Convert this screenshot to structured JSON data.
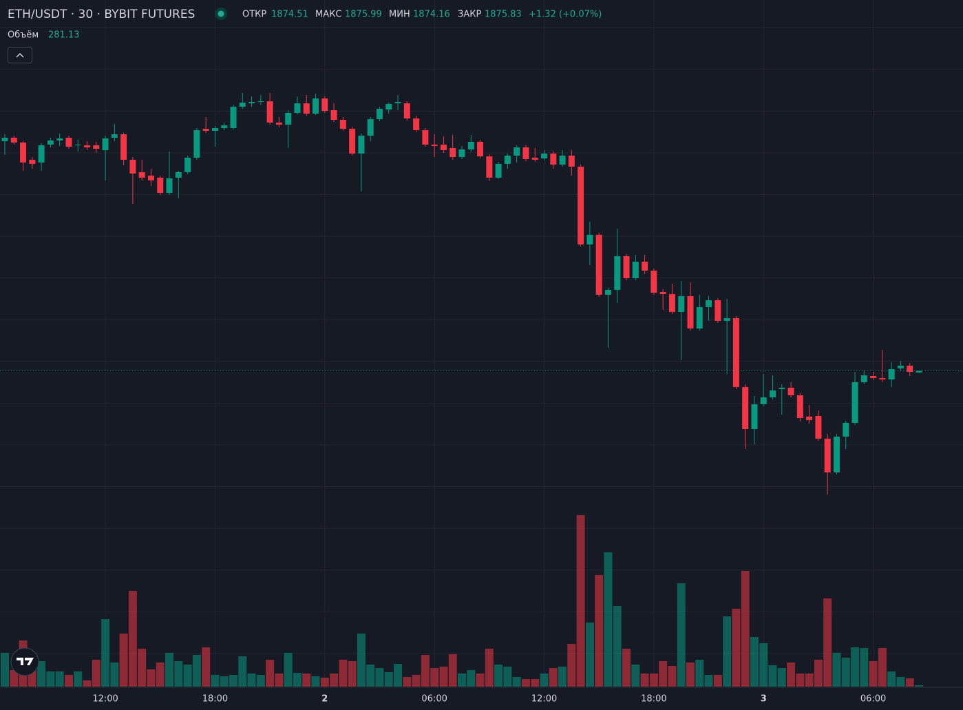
{
  "chart_data": {
    "type": "candlestick",
    "title": "ETH/USDT · 30 · BYBIT FUTURES",
    "ohlc_labels": [
      "ОТКР",
      "МАКС",
      "МИН",
      "ЗАКР"
    ],
    "change": "+1.32 (+0.07%)",
    "volume_label": "Объём",
    "up_color": "#089981",
    "down_color": "#f23645",
    "categories": [
      null,
      null,
      null,
      null,
      null,
      null,
      null,
      null,
      null,
      null,
      null,
      "12:00",
      null,
      null,
      null,
      null,
      null,
      null,
      null,
      null,
      null,
      null,
      null,
      "18:00",
      null,
      null,
      null,
      null,
      null,
      null,
      null,
      null,
      null,
      null,
      null,
      "2",
      null,
      null,
      null,
      null,
      null,
      null,
      null,
      null,
      null,
      null,
      null,
      "06:00",
      null,
      null,
      null,
      null,
      null,
      null,
      null,
      null,
      null,
      null,
      null,
      "12:00",
      null,
      null,
      null,
      null,
      null,
      null,
      null,
      null,
      null,
      null,
      null,
      "18:00",
      null,
      null,
      null,
      null,
      null,
      null,
      null,
      null,
      null,
      null,
      null,
      "3",
      null,
      null,
      null,
      null,
      null,
      null,
      null,
      null,
      null,
      null,
      null,
      "06:00",
      null,
      null,
      null,
      null,
      null
    ],
    "open": [
      2042.5,
      2045,
      2041.5,
      2029,
      2027,
      2040,
      2043,
      2045,
      2039.5,
      2039.5,
      2039.5,
      2036,
      2045,
      2047.5,
      2029,
      2020,
      2017.5,
      2016,
      2005,
      2016,
      2020,
      2030.5,
      2051.5,
      2050,
      2052,
      2052,
      2067.5,
      2070,
      2071,
      2071.5,
      2056,
      2054.5,
      2063,
      2070,
      2062.5,
      2073.5,
      2065,
      2058,
      2051.5,
      2033.5,
      2046.5,
      2058.5,
      2065.5,
      2070,
      2070,
      2059,
      2050.5,
      2040,
      2040,
      2037.5,
      2031,
      2036.5,
      2042,
      2031.5,
      2016,
      2026,
      2032,
      2038,
      2030.5,
      2030,
      2033.5,
      2025.5,
      2032,
      2024,
      1967.5,
      1974.5,
      1931,
      1934.5,
      1959,
      1943,
      1955,
      1948.5,
      1933,
      1931.5,
      1918.5,
      1930,
      1906.5,
      1922,
      1927,
      1912,
      1914,
      1864,
      1833.5,
      1851.5,
      1856.5,
      1862.5,
      1863.5,
      1858,
      1842.5,
      1843,
      1826.5,
      1802,
      1828,
      1838,
      1867.5,
      1872,
      1870.5,
      1869.5,
      1877.5,
      1879.5,
      1874.51
    ],
    "high": [
      2047.5,
      2046.5,
      2042.5,
      2031,
      2041,
      2045,
      2048,
      2046.5,
      2043.5,
      2042.5,
      2042,
      2046.5,
      2055,
      2048.5,
      2031,
      2029,
      2022.5,
      2017.5,
      2035,
      2021,
      2032,
      2052,
      2060,
      2053.5,
      2056,
      2069,
      2077.5,
      2075,
      2076,
      2077.5,
      2060,
      2065,
      2075,
      2076,
      2077,
      2075,
      2070,
      2060,
      2053,
      2048,
      2060,
      2067.5,
      2070.5,
      2076,
      2071.5,
      2061,
      2052,
      2047.5,
      2046,
      2047,
      2039,
      2047,
      2043.5,
      2033,
      2027.5,
      2033.5,
      2039.5,
      2039.5,
      2037.5,
      2036,
      2035,
      2036,
      2036,
      2025.5,
      1984,
      1976,
      1936,
      1979,
      1960.5,
      1960,
      1960,
      1950,
      1935,
      1939,
      1941,
      1940,
      1931,
      1930,
      1928.5,
      1928,
      1915.5,
      1866,
      1857.5,
      1873.5,
      1872.5,
      1866,
      1867.5,
      1859.5,
      1851,
      1847,
      1830,
      1830,
      1839.5,
      1875,
      1876,
      1875,
      1891,
      1882,
      1883,
      1881.5,
      1875.99
    ],
    "low": [
      2032.5,
      2040,
      2021,
      2022.5,
      2021,
      2038,
      2039,
      2037,
      2035,
      2036,
      2034,
      2014,
      2042.5,
      2025,
      1997,
      2014,
      2010,
      2003.5,
      2003.5,
      2001,
      2018.5,
      2029,
      2048.5,
      2038.5,
      2050.5,
      2051,
      2066,
      2067.5,
      2069,
      2054.5,
      2052.5,
      2037.5,
      2062,
      2061,
      2061.5,
      2063,
      2056.5,
      2050,
      2032,
      2006,
      2042.5,
      2057,
      2062.5,
      2065,
      2057.5,
      2049,
      2038.5,
      2031,
      2034,
      2029,
      2029.5,
      2035,
      2030,
      2013.5,
      2015,
      2022.5,
      2027,
      2028,
      2027.5,
      2028.5,
      2022.5,
      2024,
      2017.5,
      1966,
      1952.5,
      1929.5,
      1892.5,
      1925,
      1941.5,
      1941.5,
      1946,
      1931,
      1920,
      1917,
      1883.5,
      1905,
      1905,
      1912,
      1910.5,
      1873.5,
      1862.5,
      1819,
      1822.5,
      1850,
      1855,
      1844,
      1856.5,
      1839,
      1837.5,
      1825,
      1786,
      1800.5,
      1819,
      1836.5,
      1866,
      1869,
      1867.5,
      1864,
      1876,
      1872,
      1874.16
    ],
    "close": [
      2045,
      2041.5,
      2027,
      2026,
      2039.5,
      2043,
      2044.5,
      2038.5,
      2040,
      2038,
      2037,
      2044.5,
      2047.5,
      2029,
      2019,
      2016,
      2014,
      2005,
      2015.5,
      2020,
      2030.5,
      2050.5,
      2050,
      2052,
      2054,
      2067.5,
      2070.5,
      2071,
      2071.5,
      2056,
      2054.5,
      2063,
      2070,
      2062.5,
      2073.5,
      2064.5,
      2058,
      2051.5,
      2033.5,
      2046.5,
      2058.5,
      2066,
      2069.5,
      2071,
      2059,
      2050.5,
      2040,
      2039,
      2036,
      2031,
      2036.5,
      2042,
      2031.5,
      2016,
      2026,
      2032,
      2038,
      2029.5,
      2029,
      2033.5,
      2025.5,
      2032,
      2024,
      1967.5,
      1974.5,
      1931,
      1934.5,
      1959,
      1943,
      1955,
      1948.5,
      1932.5,
      1931.5,
      1918.5,
      1930,
      1906.5,
      1922,
      1927,
      1912,
      1914,
      1864,
      1833.5,
      1851.5,
      1856.5,
      1861.5,
      1863.5,
      1858,
      1841.5,
      1840,
      1826.5,
      1802,
      1828,
      1838,
      1867.5,
      1872.5,
      1870.5,
      1869.5,
      1877,
      1879.5,
      1875,
      1875.83
    ],
    "volume": [
      6860,
      3360,
      9380,
      4060,
      5180,
      3080,
      3080,
      2380,
      3080,
      1260,
      5460,
      13720,
      4900,
      10780,
      19460,
      7700,
      3500,
      4900,
      6860,
      5180,
      4480,
      6440,
      7980,
      2380,
      2100,
      2380,
      6160,
      2660,
      2380,
      5460,
      2660,
      6860,
      2800,
      2660,
      2100,
      1820,
      2660,
      5460,
      5180,
      10780,
      4480,
      3780,
      2940,
      4620,
      1960,
      2380,
      6440,
      3780,
      4060,
      6580,
      2660,
      3360,
      2660,
      7700,
      4480,
      4060,
      1960,
      1540,
      1540,
      2660,
      3780,
      4060,
      8680,
      34860,
      13020,
      22680,
      27300,
      16380,
      7700,
      4480,
      2660,
      2660,
      5180,
      4200,
      21000,
      4900,
      5460,
      2380,
      2380,
      14280,
      15820,
      23520,
      10080,
      8820,
      4340,
      3780,
      4900,
      2660,
      2660,
      5460,
      17920,
      6860,
      5880,
      7980,
      7840,
      5180,
      7840,
      3080,
      1960,
      1680,
      281.13
    ],
    "ylim": [
      1645,
      2145
    ],
    "y2lim": [
      0,
      35000
    ]
  }
}
